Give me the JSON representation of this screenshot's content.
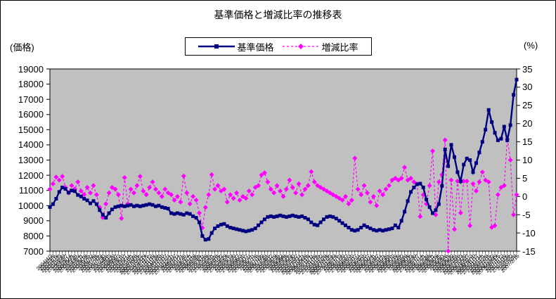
{
  "colors": {
    "price": "#000080",
    "ratio": "#FF00FF",
    "plot_bg": "#C0C0C0",
    "border": "#000000",
    "background": "#FFFFFF"
  },
  "chart_data": {
    "type": "line",
    "title": "基準価格と増減比率の推移表",
    "legend_position": "top",
    "grid": false,
    "left_axis": {
      "label": "(価格)",
      "min": 7000,
      "max": 19000,
      "step": 1000,
      "ticks": [
        "19000",
        "18000",
        "17000",
        "16000",
        "15000",
        "14000",
        "13000",
        "12000",
        "11000",
        "10000",
        "9000",
        "8000",
        "7000"
      ]
    },
    "right_axis": {
      "label": "(%)",
      "min": -15,
      "max": 35,
      "step": 5,
      "ticks": [
        "35",
        "30",
        "25",
        "20",
        "15",
        "10",
        "5",
        "0",
        "-5",
        "-10",
        "-15"
      ]
    },
    "x": [
      "2004/4/2",
      "2004/4/9",
      "2004/4/16",
      "2004/4/23",
      "2004/4/30",
      "2004/5/7",
      "2004/5/14",
      "2004/5/21",
      "2004/5/28",
      "2004/6/4",
      "2004/6/11",
      "2004/6/18",
      "2004/6/25",
      "2004/7/2",
      "2004/7/9",
      "2004/7/16",
      "2004/7/23",
      "2004/7/30",
      "2004/8/6",
      "2004/8/13",
      "2004/8/20",
      "2004/8/27",
      "2004/9/3",
      "2004/9/10",
      "2004/9/17",
      "2004/9/24",
      "2004/10/1",
      "2004/10/8",
      "2004/10/15",
      "2004/10/22",
      "2004/10/29",
      "2004/11/5",
      "2004/11/12",
      "2004/11/19",
      "2004/11/26",
      "2004/12/3",
      "2004/12/10",
      "2004/12/17",
      "2004/12/24",
      "2004/12/31",
      "2005/1/7",
      "2005/1/14",
      "2005/1/21",
      "2005/1/28",
      "2005/2/4",
      "2005/2/11",
      "2005/2/18",
      "2005/2/25",
      "2005/3/4",
      "2005/3/11",
      "2005/3/18",
      "2005/3/25",
      "2005/4/1",
      "2005/4/8",
      "2005/4/15",
      "2005/4/22",
      "2005/4/29",
      "2005/5/6",
      "2005/5/13",
      "2005/5/20",
      "2005/5/27",
      "2005/6/3",
      "2005/6/10",
      "2005/6/17",
      "2005/6/24",
      "2005/7/1",
      "2005/7/8",
      "2005/7/15",
      "2005/7/22",
      "2005/7/29",
      "2005/8/5",
      "2005/8/12",
      "2005/8/19",
      "2005/8/26",
      "2005/9/2",
      "2005/9/9",
      "2005/9/16",
      "2005/9/23",
      "2005/9/30",
      "2005/10/7",
      "2005/10/14",
      "2005/10/21",
      "2005/10/28",
      "2005/11/4",
      "2005/11/11",
      "2005/11/18",
      "2005/11/25",
      "2005/12/2",
      "2005/12/9",
      "2005/12/16",
      "2005/12/23",
      "2005/12/30",
      "2006/1/6",
      "2006/1/13",
      "2006/1/20",
      "2006/1/27",
      "2006/2/3",
      "2006/2/10",
      "2006/2/17",
      "2006/2/24",
      "2006/3/3",
      "2006/3/10",
      "2006/3/17",
      "2006/3/24",
      "2006/3/31",
      "2006/4/7",
      "2006/4/14",
      "2006/4/21",
      "2006/4/28",
      "2006/5/5",
      "2006/5/12",
      "2006/5/19",
      "2006/5/26",
      "2006/6/2",
      "2006/6/9",
      "2006/6/16",
      "2006/6/23",
      "2006/6/30",
      "2006/7/7",
      "2006/7/14",
      "2006/7/21",
      "2006/7/28",
      "2006/8/4",
      "2006/8/11",
      "2006/8/18",
      "2006/8/25",
      "2006/9/1",
      "2006/9/8",
      "2006/9/15",
      "2006/9/22",
      "2006/9/29",
      "2006/10/6",
      "2006/10/13",
      "2006/10/20",
      "2006/10/27",
      "2006/11/3",
      "2006/11/10",
      "2006/11/17",
      "2006/11/24",
      "2006/12/1",
      "2006/12/8",
      "2006/12/15",
      "2006/12/22",
      "2006/12/29",
      "2007/1/5",
      "2007/1/12",
      "2007/1/19",
      "2007/1/26",
      "2007/2/2",
      "2007/2/9",
      "2007/2/16"
    ],
    "series": [
      {
        "name": "基準価格",
        "axis": "left",
        "color": "#000080",
        "line": "solid",
        "marker": "square",
        "values": [
          9900,
          10100,
          10450,
          10900,
          11200,
          11100,
          10850,
          11000,
          10950,
          10700,
          10600,
          10450,
          10350,
          10150,
          10300,
          10100,
          9700,
          9400,
          9200,
          9500,
          9750,
          9900,
          9950,
          10000,
          9950,
          10000,
          10050,
          9950,
          10000,
          9950,
          10000,
          10050,
          10100,
          10050,
          9950,
          10000,
          9900,
          9850,
          9800,
          9500,
          9450,
          9500,
          9450,
          9400,
          9500,
          9450,
          9300,
          9200,
          8900,
          8000,
          7750,
          7800,
          8200,
          8500,
          8650,
          8750,
          8800,
          8650,
          8550,
          8500,
          8450,
          8400,
          8350,
          8300,
          8350,
          8400,
          8500,
          8700,
          8900,
          9100,
          9250,
          9300,
          9250,
          9300,
          9350,
          9300,
          9250,
          9300,
          9350,
          9300,
          9250,
          9300,
          9200,
          9100,
          8900,
          8750,
          8700,
          8900,
          9100,
          9250,
          9300,
          9250,
          9150,
          9000,
          8850,
          8700,
          8550,
          8400,
          8350,
          8400,
          8550,
          8700,
          8600,
          8500,
          8400,
          8350,
          8400,
          8350,
          8400,
          8450,
          8500,
          8700,
          8550,
          9000,
          9600,
          10300,
          10900,
          11200,
          11400,
          11450,
          11200,
          10400,
          9900,
          9500,
          9700,
          10100,
          11300,
          13700,
          12600,
          14000,
          13200,
          12200,
          11600,
          12700,
          13100,
          13000,
          12200,
          12800,
          13500,
          14200,
          15000,
          16300,
          15500,
          14800,
          14300,
          14400,
          15200,
          14300,
          15300,
          17300,
          18300
        ]
      },
      {
        "name": "増減比率",
        "axis": "right",
        "color": "#FF00FF",
        "line": "dashed",
        "marker": "diamond",
        "values": [
          2,
          3.5,
          5.3,
          4.5,
          5.5,
          2.5,
          1,
          3,
          2,
          4,
          1.5,
          0.5,
          2.5,
          1,
          3,
          0.5,
          -3,
          -5.8,
          -2,
          1,
          2.5,
          2,
          0.5,
          -6,
          5.2,
          -2,
          2,
          1,
          3,
          5.5,
          1.5,
          0.5,
          2.5,
          4,
          2,
          1,
          0,
          2,
          1,
          0.5,
          -1,
          0,
          -1.5,
          5.6,
          1,
          -2,
          0,
          -1,
          -4.5,
          -8.6,
          -3,
          0.5,
          6,
          2,
          3,
          1.5,
          2,
          -1.5,
          0.5,
          -0.5,
          1,
          -1,
          0,
          -0.5,
          1.5,
          0.5,
          2.5,
          3,
          5.9,
          6.5,
          4,
          2,
          1,
          3,
          1.5,
          0,
          2,
          4.5,
          2.5,
          1,
          3.5,
          0.5,
          2,
          3,
          6.8,
          4,
          3,
          2.5,
          2,
          1.5,
          1,
          0.5,
          0,
          -0.5,
          -1,
          0,
          -2,
          -1,
          10.5,
          2,
          0.5,
          3,
          1,
          -1.5,
          0,
          -2.5,
          1.5,
          0.5,
          2,
          3,
          4.5,
          5,
          4.5,
          5,
          8,
          4.5,
          5,
          4,
          3.5,
          -5.5,
          0.5,
          -2,
          3,
          12.5,
          -5,
          4,
          6,
          15.5,
          -15,
          4.5,
          -9,
          4.2,
          -4.5,
          4.2,
          4.2,
          -8,
          3.5,
          1.5,
          4,
          6.7,
          4.5,
          4,
          -8.5,
          -8,
          0.5,
          2.5,
          3,
          15.8,
          10,
          -5,
          0.5
        ]
      }
    ]
  }
}
